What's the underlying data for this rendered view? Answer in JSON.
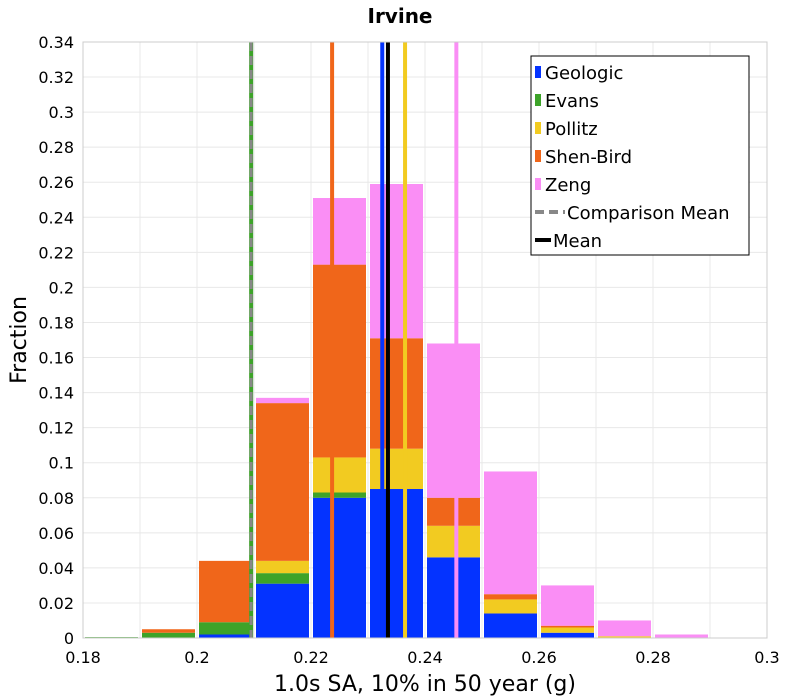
{
  "chart_data": {
    "type": "bar",
    "stacked": true,
    "title": "Irvine",
    "xlabel": "1.0s SA, 10% in 50 year (g)",
    "ylabel": "Fraction",
    "xlim": [
      0.18,
      0.3
    ],
    "ylim": [
      0,
      0.34
    ],
    "grid": true,
    "legend_position": "top-right",
    "x_ticks": [
      "0.18",
      "0.2",
      "0.22",
      "0.24",
      "0.26",
      "0.28",
      "0.3"
    ],
    "x_tick_values": [
      0.18,
      0.2,
      0.22,
      0.24,
      0.26,
      0.28,
      0.3
    ],
    "y_ticks": [
      "0",
      "0.02",
      "0.04",
      "0.06",
      "0.08",
      "0.1",
      "0.12",
      "0.14",
      "0.16",
      "0.18",
      "0.2",
      "0.22",
      "0.24",
      "0.26",
      "0.28",
      "0.3",
      "0.32",
      "0.34"
    ],
    "y_tick_values": [
      0,
      0.02,
      0.04,
      0.06,
      0.08,
      0.1,
      0.12,
      0.14,
      0.16,
      0.18,
      0.2,
      0.22,
      0.24,
      0.26,
      0.28,
      0.3,
      0.32,
      0.34
    ],
    "bins": [
      [
        0.18,
        0.19
      ],
      [
        0.19,
        0.2
      ],
      [
        0.2,
        0.21
      ],
      [
        0.21,
        0.22
      ],
      [
        0.22,
        0.23
      ],
      [
        0.23,
        0.24
      ],
      [
        0.24,
        0.25
      ],
      [
        0.25,
        0.26
      ],
      [
        0.26,
        0.27
      ],
      [
        0.27,
        0.28
      ],
      [
        0.28,
        0.29
      ],
      [
        0.29,
        0.3
      ]
    ],
    "series": [
      {
        "name": "Geologic",
        "color": "#0433ff",
        "values": [
          0,
          0,
          0.002,
          0.031,
          0.08,
          0.085,
          0.046,
          0.014,
          0.003,
          0,
          0,
          0
        ]
      },
      {
        "name": "Evans",
        "color": "#3da329",
        "values": [
          0.0005,
          0.003,
          0.007,
          0.006,
          0.003,
          0,
          0,
          0,
          0,
          0,
          0,
          0
        ]
      },
      {
        "name": "Pollitz",
        "color": "#f2cb21",
        "values": [
          0,
          0,
          0,
          0.007,
          0.02,
          0.023,
          0.018,
          0.008,
          0.003,
          0.001,
          0,
          0
        ]
      },
      {
        "name": "Shen-Bird",
        "color": "#f0661a",
        "values": [
          0,
          0.002,
          0.035,
          0.09,
          0.11,
          0.063,
          0.016,
          0.003,
          0.001,
          0,
          0,
          0
        ]
      },
      {
        "name": "Zeng",
        "color": "#fa8ef5",
        "values": [
          0,
          0,
          0,
          0.003,
          0.038,
          0.088,
          0.088,
          0.07,
          0.023,
          0.009,
          0.002,
          0
        ]
      }
    ],
    "vertical_lines": [
      {
        "name": "Geologic",
        "x": 0.2325,
        "color": "#0433ff",
        "style": "solid"
      },
      {
        "name": "Evans",
        "x": 0.2095,
        "color": "#3da329",
        "style": "solid"
      },
      {
        "name": "Pollitz",
        "x": 0.2365,
        "color": "#f2cb21",
        "style": "solid"
      },
      {
        "name": "Shen-Bird",
        "x": 0.2237,
        "color": "#f0661a",
        "style": "solid"
      },
      {
        "name": "Zeng",
        "x": 0.2455,
        "color": "#fa8ef5",
        "style": "solid"
      },
      {
        "name": "Comparison Mean",
        "x": 0.2095,
        "color": "#888888",
        "style": "dashed"
      },
      {
        "name": "Mean",
        "x": 0.2335,
        "color": "#000000",
        "style": "solid"
      }
    ],
    "legend": [
      {
        "label": "Geologic",
        "kind": "box",
        "color": "#0433ff"
      },
      {
        "label": "Evans",
        "kind": "box",
        "color": "#3da329"
      },
      {
        "label": "Pollitz",
        "kind": "box",
        "color": "#f2cb21"
      },
      {
        "label": "Shen-Bird",
        "kind": "box",
        "color": "#f0661a"
      },
      {
        "label": "Zeng",
        "kind": "box",
        "color": "#fa8ef5"
      },
      {
        "label": "Comparison Mean",
        "kind": "dashed",
        "color": "#888888"
      },
      {
        "label": "Mean",
        "kind": "line",
        "color": "#000000"
      }
    ]
  }
}
